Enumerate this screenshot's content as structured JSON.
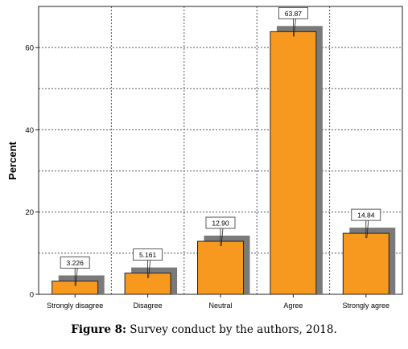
{
  "chart_data": {
    "type": "bar",
    "categories": [
      "Strongly disagree",
      "Disagree",
      "Neutral",
      "Agree",
      "Strongly agree"
    ],
    "values": [
      3.226,
      5.161,
      12.9,
      63.87,
      14.84
    ],
    "data_labels": [
      "3.226",
      "5.161",
      "12.90",
      "63.87",
      "14.84"
    ],
    "ylabel": "Percent",
    "ylim": [
      0,
      70
    ],
    "yticks": [
      0,
      20,
      40,
      60
    ],
    "grid": true,
    "bar_color": "#f7991f",
    "shadow_color": "#7a7a7a"
  },
  "caption": {
    "label": "Figure 8:",
    "text": " Survey conduct by the authors, 2018."
  }
}
